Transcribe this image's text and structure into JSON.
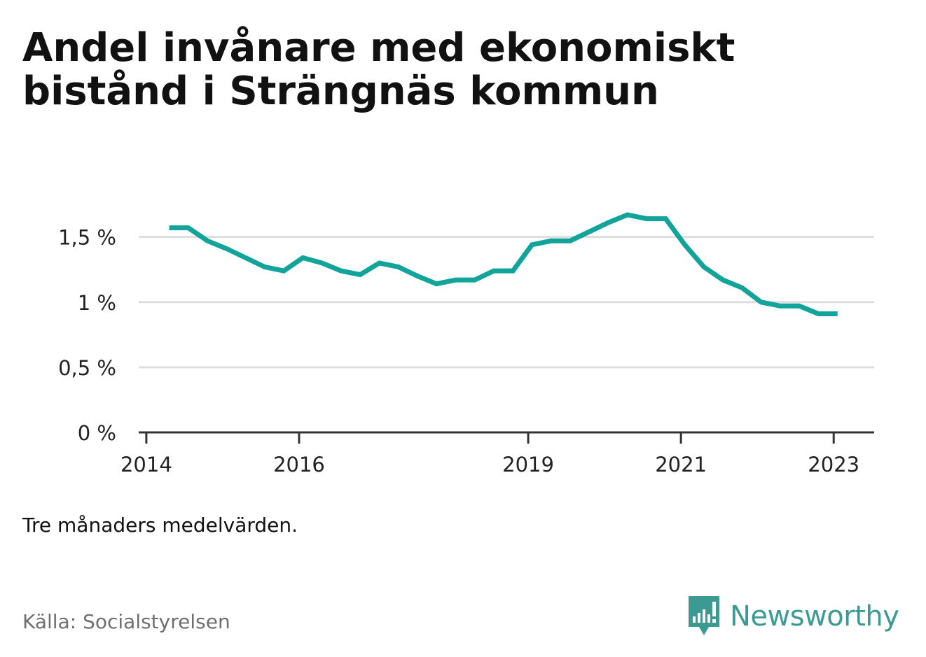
{
  "title": "Andel invånare med ekonomiskt bistånd i Strängnäs kommun",
  "note": "Tre månaders medelvärden.",
  "source": "Källa: Socialstyrelsen",
  "brand": {
    "name": "Newsworthy",
    "icon": "bar-chart-speech-bubble-icon",
    "color": "#3d9a93"
  },
  "colors": {
    "line": "#12a39a",
    "grid": "#dedede",
    "axis": "#333333"
  },
  "chart_data": {
    "type": "line",
    "title": "Andel invånare med ekonomiskt bistånd i Strängnäs kommun",
    "xlabel": "",
    "ylabel": "",
    "ylim": [
      0,
      1.75
    ],
    "xlim": [
      2013.9,
      2023.5
    ],
    "grid": true,
    "legend": "none",
    "y_ticks": [
      {
        "value": 0,
        "label": "0 %"
      },
      {
        "value": 0.5,
        "label": "0,5 %"
      },
      {
        "value": 1,
        "label": "1 %"
      },
      {
        "value": 1.5,
        "label": "1,5 %"
      }
    ],
    "x_ticks": [
      {
        "value": 2014,
        "label": "2014"
      },
      {
        "value": 2016,
        "label": "2016"
      },
      {
        "value": 2019,
        "label": "2019"
      },
      {
        "value": 2021,
        "label": "2021"
      },
      {
        "value": 2023,
        "label": "2023"
      }
    ],
    "series": [
      {
        "x": [
          2014.3,
          2014.55,
          2014.8,
          2015.05,
          2015.3,
          2015.55,
          2015.8,
          2016.05,
          2016.3,
          2016.55,
          2016.8,
          2017.05,
          2017.3,
          2017.55,
          2017.8,
          2018.05,
          2018.3,
          2018.55,
          2018.8,
          2019.05,
          2019.3,
          2019.55,
          2019.8,
          2020.05,
          2020.3,
          2020.55,
          2020.8,
          2021.05,
          2021.3,
          2021.55,
          2021.8,
          2022.05,
          2022.3,
          2022.55,
          2022.8,
          2023.05
        ],
        "values": [
          1.57,
          1.57,
          1.47,
          1.41,
          1.34,
          1.27,
          1.24,
          1.34,
          1.3,
          1.24,
          1.21,
          1.3,
          1.27,
          1.2,
          1.14,
          1.17,
          1.17,
          1.24,
          1.24,
          1.44,
          1.47,
          1.47,
          1.54,
          1.61,
          1.67,
          1.64,
          1.64,
          1.44,
          1.27,
          1.17,
          1.11,
          1.0,
          0.97,
          0.97,
          0.91,
          0.91
        ]
      }
    ]
  }
}
